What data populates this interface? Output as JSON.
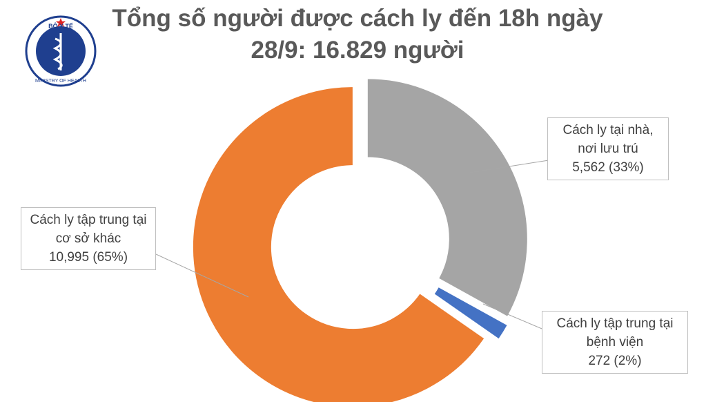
{
  "logo": {
    "top_text": "BỘ Y TẾ",
    "bottom_text": "MINISTRY OF HEALTH"
  },
  "chart_data": {
    "type": "donut",
    "title": "Tổng số người được cách ly đến 18h ngày 28/9: 16.829 người",
    "categories": [
      "Cách ly tại nhà, nơi lưu trú",
      "Cách ly tập trung tại bệnh viện",
      "Cách ly tập trung tại cơ sở khác"
    ],
    "values": [
      5562,
      272,
      10995
    ],
    "value_labels": [
      "5,562 (33%)",
      "272 (2%)",
      "10,995 (65%)"
    ],
    "colors": [
      "#a5a5a5",
      "#4472c4",
      "#ed7d31"
    ]
  }
}
